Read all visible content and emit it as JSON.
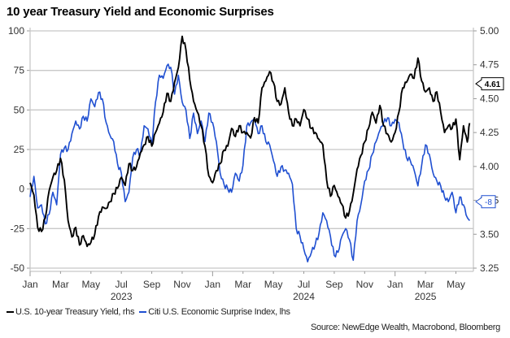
{
  "title": "10 year Treasury Yield and Economic Surprises",
  "legend": [
    {
      "label": "U.S. 10-year Treasury Yield, rhs",
      "color": "#000000"
    },
    {
      "label": "Citi U.S. Economic Surprise Index, lhs",
      "color": "#1f4fd1"
    }
  ],
  "source": "Source: NewEdge Wealth, Macrobond, Bloomberg",
  "chart_data": {
    "type": "line",
    "title": "10 year Treasury Yield and Economic Surprises",
    "xlabel": "",
    "x_range": [
      "2023-01",
      "2025-05"
    ],
    "x_ticks": [
      {
        "label": "Jan",
        "month": 0,
        "year": "",
        "major": true
      },
      {
        "label": "Mar",
        "month": 2,
        "year": ""
      },
      {
        "label": "May",
        "month": 4,
        "year": ""
      },
      {
        "label": "Jul",
        "month": 6,
        "year": "2023"
      },
      {
        "label": "Sep",
        "month": 8,
        "year": ""
      },
      {
        "label": "Nov",
        "month": 10,
        "year": ""
      },
      {
        "label": "Jan",
        "month": 12,
        "year": "",
        "major": true
      },
      {
        "label": "Mar",
        "month": 14,
        "year": ""
      },
      {
        "label": "May",
        "month": 16,
        "year": ""
      },
      {
        "label": "Jul",
        "month": 18,
        "year": "2024"
      },
      {
        "label": "Sep",
        "month": 20,
        "year": ""
      },
      {
        "label": "Nov",
        "month": 22,
        "year": ""
      },
      {
        "label": "Jan",
        "month": 24,
        "year": "",
        "major": true
      },
      {
        "label": "Mar",
        "month": 26,
        "year": "2025"
      },
      {
        "label": "May",
        "month": 28,
        "year": ""
      }
    ],
    "y_left": {
      "label": "Citi U.S. Economic Surprise Index",
      "range": [
        -50,
        100
      ],
      "ticks": [
        100,
        75,
        50,
        25,
        0,
        -25,
        -50
      ]
    },
    "y_right": {
      "label": "U.S. 10-year Treasury Yield (%)",
      "range": [
        3.25,
        5.0
      ],
      "ticks": [
        "5.00",
        "4.75",
        "4.50",
        "4.25",
        "4.00",
        "3.75",
        "3.50",
        "3.25"
      ]
    },
    "grid": true,
    "legend_position": "bottom-left",
    "callouts": [
      {
        "series": "U.S. 10-year Treasury Yield, rhs",
        "value": "4.61",
        "axis": "right"
      },
      {
        "series": "Citi U.S. Economic Surprise Index, lhs",
        "value": "-8",
        "axis": "left"
      }
    ],
    "series": [
      {
        "name": "U.S. 10-year Treasury Yield, rhs",
        "axis": "right",
        "color": "#000000",
        "month": [
          0,
          0.25,
          0.5,
          0.75,
          1,
          1.25,
          1.5,
          1.75,
          2,
          2.25,
          2.5,
          2.75,
          3,
          3.25,
          3.5,
          3.75,
          4,
          4.25,
          4.5,
          4.75,
          5,
          5.25,
          5.5,
          5.75,
          6,
          6.25,
          6.5,
          6.75,
          7,
          7.25,
          7.5,
          7.75,
          8,
          8.25,
          8.5,
          8.75,
          9,
          9.25,
          9.5,
          9.75,
          10,
          10.25,
          10.5,
          10.75,
          11,
          11.25,
          11.5,
          11.75,
          12,
          12.25,
          12.5,
          12.75,
          13,
          13.25,
          13.5,
          13.75,
          14,
          14.25,
          14.5,
          14.75,
          15,
          15.25,
          15.5,
          15.75,
          16,
          16.25,
          16.5,
          16.75,
          17,
          17.25,
          17.5,
          17.75,
          18,
          18.25,
          18.5,
          18.75,
          19,
          19.25,
          19.5,
          19.75,
          20,
          20.25,
          20.5,
          20.75,
          21,
          21.25,
          21.5,
          21.75,
          22,
          22.25,
          22.5,
          22.75,
          23,
          23.25,
          23.5,
          23.75,
          24,
          24.25,
          24.5,
          24.75,
          25,
          25.25,
          25.5,
          25.75,
          26,
          26.25,
          26.5,
          26.75,
          27,
          27.25,
          27.5,
          27.75,
          28,
          28.25,
          28.5,
          28.75,
          28.9
        ],
        "values": [
          3.88,
          3.79,
          3.55,
          3.52,
          3.62,
          3.82,
          3.92,
          3.97,
          4.06,
          3.9,
          3.6,
          3.48,
          3.55,
          3.42,
          3.49,
          3.41,
          3.44,
          3.5,
          3.63,
          3.7,
          3.69,
          3.74,
          3.8,
          3.84,
          3.92,
          3.86,
          4.02,
          3.97,
          4.0,
          4.1,
          4.16,
          4.22,
          4.15,
          4.25,
          4.32,
          4.4,
          4.54,
          4.48,
          4.62,
          4.73,
          4.96,
          4.86,
          4.64,
          4.48,
          4.4,
          4.3,
          4.15,
          3.93,
          3.88,
          3.97,
          4.02,
          4.12,
          4.15,
          4.28,
          4.22,
          4.3,
          4.25,
          4.25,
          4.21,
          4.36,
          4.32,
          4.58,
          4.63,
          4.7,
          4.62,
          4.48,
          4.46,
          4.58,
          4.4,
          4.3,
          4.35,
          4.3,
          4.42,
          4.35,
          4.28,
          4.25,
          4.2,
          4.16,
          3.9,
          3.78,
          3.86,
          3.78,
          3.72,
          3.62,
          3.67,
          3.8,
          3.98,
          4.08,
          4.18,
          4.28,
          4.4,
          4.32,
          4.45,
          4.3,
          4.24,
          4.18,
          4.25,
          4.4,
          4.58,
          4.62,
          4.68,
          4.65,
          4.8,
          4.63,
          4.55,
          4.58,
          4.48,
          4.55,
          4.4,
          4.25,
          4.3,
          4.28,
          4.35,
          4.05,
          4.3,
          4.18,
          4.32,
          4.38,
          4.45,
          4.45,
          4.61
        ]
      },
      {
        "name": "Citi U.S. Economic Surprise Index, lhs",
        "axis": "left",
        "color": "#1f4fd1",
        "month": [
          0,
          0.25,
          0.5,
          0.75,
          1,
          1.25,
          1.5,
          1.75,
          2,
          2.25,
          2.5,
          2.75,
          3,
          3.25,
          3.5,
          3.75,
          4,
          4.25,
          4.5,
          4.75,
          5,
          5.25,
          5.5,
          5.75,
          6,
          6.25,
          6.5,
          6.75,
          7,
          7.25,
          7.5,
          7.75,
          8,
          8.25,
          8.5,
          8.75,
          9,
          9.25,
          9.5,
          9.75,
          10,
          10.25,
          10.5,
          10.75,
          11,
          11.25,
          11.5,
          11.75,
          12,
          12.25,
          12.5,
          12.75,
          13,
          13.25,
          13.5,
          13.75,
          14,
          14.25,
          14.5,
          14.75,
          15,
          15.25,
          15.5,
          15.75,
          16,
          16.25,
          16.5,
          16.75,
          17,
          17.25,
          17.5,
          17.75,
          18,
          18.25,
          18.5,
          18.75,
          19,
          19.25,
          19.5,
          19.75,
          20,
          20.25,
          20.5,
          20.75,
          21,
          21.25,
          21.5,
          21.75,
          22,
          22.25,
          22.5,
          22.75,
          23,
          23.25,
          23.5,
          23.75,
          24,
          24.25,
          24.5,
          24.75,
          25,
          25.25,
          25.5,
          25.75,
          26,
          26.25,
          26.5,
          26.75,
          27,
          27.25,
          27.5,
          27.75,
          28,
          28.25,
          28.5,
          28.75,
          28.9
        ],
        "values": [
          -5,
          8,
          -12,
          -10,
          -22,
          -16,
          -2,
          -10,
          22,
          26,
          25,
          35,
          43,
          38,
          46,
          43,
          57,
          52,
          61,
          57,
          42,
          34,
          30,
          16,
          10,
          -8,
          -2,
          20,
          25,
          22,
          40,
          38,
          28,
          55,
          72,
          70,
          78,
          77,
          60,
          72,
          55,
          50,
          32,
          48,
          35,
          43,
          30,
          48,
          42,
          30,
          10,
          3,
          0,
          -2,
          10,
          5,
          15,
          40,
          42,
          45,
          35,
          40,
          30,
          28,
          18,
          8,
          14,
          12,
          10,
          3,
          -25,
          -30,
          -38,
          -46,
          -40,
          -35,
          -28,
          -15,
          -20,
          -30,
          -42,
          -40,
          -30,
          -25,
          -32,
          -45,
          -20,
          -10,
          5,
          12,
          22,
          30,
          37,
          42,
          45,
          40,
          44,
          42,
          30,
          20,
          18,
          12,
          2,
          15,
          28,
          22,
          10,
          5,
          2,
          -5,
          -8,
          -2,
          -15,
          -5,
          -10,
          -18,
          -20,
          0,
          -12,
          -5,
          -8
        ]
      }
    ]
  }
}
